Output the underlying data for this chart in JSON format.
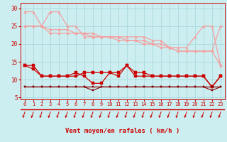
{
  "x": [
    0,
    1,
    2,
    3,
    4,
    5,
    6,
    7,
    8,
    9,
    10,
    11,
    12,
    13,
    14,
    15,
    16,
    17,
    18,
    19,
    20,
    21,
    22,
    23
  ],
  "series": [
    {
      "name": "pink_triangle_top",
      "color": "#f4a0a0",
      "linewidth": 0.9,
      "marker": "^",
      "markersize": 2.5,
      "values": [
        29,
        29,
        25,
        29,
        29,
        25,
        25,
        22,
        22,
        22,
        22,
        22,
        22,
        22,
        22,
        21,
        21,
        19,
        19,
        19,
        22,
        25,
        25,
        14
      ]
    },
    {
      "name": "pink_line2",
      "color": "#f4a0a0",
      "linewidth": 0.9,
      "marker": "D",
      "markersize": 2,
      "values": [
        25,
        25,
        25,
        23,
        23,
        23,
        23,
        23,
        22,
        22,
        22,
        21,
        21,
        21,
        21,
        20,
        20,
        19,
        18,
        18,
        18,
        18,
        18,
        25
      ]
    },
    {
      "name": "pink_line3_diagonal",
      "color": "#f4a0a0",
      "linewidth": 0.9,
      "marker": "D",
      "markersize": 2,
      "values": [
        25,
        25,
        25,
        24,
        24,
        24,
        23,
        23,
        23,
        22,
        22,
        22,
        21,
        21,
        20,
        20,
        19,
        19,
        18,
        18,
        18,
        18,
        18,
        14
      ]
    },
    {
      "name": "dark_red_dashed_top",
      "color": "#cc0000",
      "linewidth": 0.9,
      "marker": "s",
      "markersize": 2.5,
      "values": [
        14,
        14,
        11,
        11,
        11,
        11,
        11,
        12,
        12,
        12,
        12,
        12,
        14,
        12,
        12,
        11,
        11,
        11,
        11,
        11,
        11,
        11,
        8,
        11
      ]
    },
    {
      "name": "dark_red_mid",
      "color": "#cc0000",
      "linewidth": 0.9,
      "marker": "s",
      "markersize": 2.5,
      "values": [
        14,
        13,
        11,
        11,
        11,
        11,
        12,
        11,
        9,
        9,
        12,
        11,
        14,
        11,
        11,
        11,
        11,
        11,
        11,
        11,
        11,
        11,
        8,
        11
      ]
    },
    {
      "name": "dark_red_lower",
      "color": "#880000",
      "linewidth": 0.9,
      "marker": "s",
      "markersize": 2,
      "values": [
        8,
        8,
        8,
        8,
        8,
        8,
        8,
        8,
        8,
        8,
        8,
        8,
        8,
        8,
        8,
        8,
        8,
        8,
        8,
        8,
        8,
        8,
        8,
        8
      ]
    },
    {
      "name": "dark_red_bottom",
      "color": "#880000",
      "linewidth": 0.8,
      "marker": "s",
      "markersize": 1.5,
      "values": [
        8,
        8,
        8,
        8,
        8,
        8,
        8,
        8,
        7,
        8,
        8,
        8,
        8,
        8,
        8,
        8,
        8,
        8,
        8,
        8,
        8,
        8,
        7,
        8
      ]
    }
  ],
  "xlabel": "Vent moyen/en rafales ( km/h )",
  "xlim": [
    -0.5,
    23.5
  ],
  "ylim": [
    4.5,
    31.5
  ],
  "yticks": [
    5,
    10,
    15,
    20,
    25,
    30
  ],
  "xticks": [
    0,
    1,
    2,
    3,
    4,
    5,
    6,
    7,
    8,
    9,
    10,
    11,
    12,
    13,
    14,
    15,
    16,
    17,
    18,
    19,
    20,
    21,
    22,
    23
  ],
  "bg_color": "#cceef0",
  "grid_color": "#aad8dc",
  "line_color": "#cc0000",
  "tick_color": "#cc0000"
}
